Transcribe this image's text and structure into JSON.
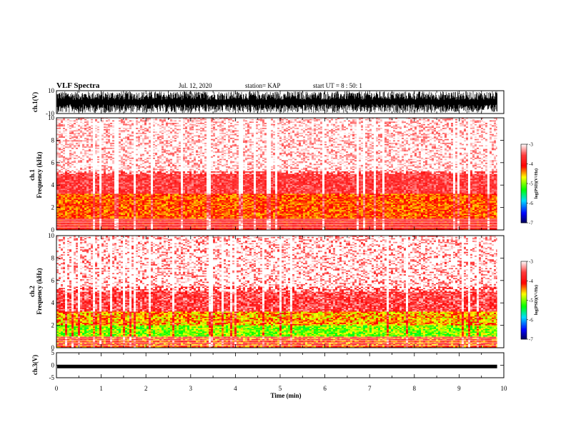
{
  "header": {
    "title": "VLF Spectra",
    "date": "Jul. 12, 2020",
    "station": "station= KAP",
    "start": "start UT =  8 : 50: 1"
  },
  "colors": {
    "background": "#ffffff",
    "axes": "#000000",
    "colormap": [
      "#ffffff",
      "#ff3030",
      "#ff0000",
      "#ffff00",
      "#00ff00",
      "#00ffff",
      "#0000ff",
      "#000080"
    ]
  },
  "chart_data": [
    {
      "type": "line",
      "panel": "ch1-waveform",
      "ylabel": "ch.1(V)",
      "ylim": [
        -10,
        10
      ],
      "yticks": [
        "10",
        "-10"
      ],
      "description_values": {
        "amplitude_range": [
          -10,
          10
        ]
      }
    },
    {
      "type": "heatmap",
      "panel": "ch1-spectrogram",
      "ylabel": "ch.1\nFrequency (kHz)",
      "ylabel_line1": "ch.1",
      "ylabel_line2": "Frequency (kHz)",
      "ylim": [
        0,
        10
      ],
      "yticks": [
        "0",
        "2",
        "4",
        "6",
        "8",
        "10"
      ],
      "colorbar": {
        "label": "log(PSD)(V²/Hz)",
        "ticks": [
          "-3",
          "-4",
          "-5",
          "-6",
          "-7"
        ],
        "range": [
          -7,
          -3
        ]
      },
      "bands_khz": [
        {
          "from": 0,
          "to": 1.0,
          "level": -4.0
        },
        {
          "from": 1.0,
          "to": 3.2,
          "level": -4.3
        },
        {
          "from": 3.2,
          "to": 5.2,
          "level": -3.6
        },
        {
          "from": 5.2,
          "to": 10,
          "level": -3.2
        }
      ]
    },
    {
      "type": "heatmap",
      "panel": "ch2-spectrogram",
      "ylabel_line1": "ch.2",
      "ylabel_line2": "Frequency (kHz)",
      "ylim": [
        0,
        10
      ],
      "yticks": [
        "0",
        "2",
        "4",
        "6",
        "8",
        "10"
      ],
      "colorbar": {
        "label": "log(PSD)(V²/Hz)",
        "ticks": [
          "-3",
          "-4",
          "-5",
          "-6",
          "-7"
        ],
        "range": [
          -7,
          -3
        ]
      },
      "bands_khz": [
        {
          "from": 0,
          "to": 1.0,
          "level": -4.2
        },
        {
          "from": 1.0,
          "to": 2.0,
          "level": -5.0
        },
        {
          "from": 2.0,
          "to": 3.2,
          "level": -4.5
        },
        {
          "from": 3.2,
          "to": 5.5,
          "level": -3.6
        },
        {
          "from": 5.5,
          "to": 10,
          "level": -3.2
        }
      ]
    },
    {
      "type": "line",
      "panel": "ch3-waveform",
      "ylabel": "ch.3(V)",
      "ylim": [
        -5,
        5
      ],
      "yticks": [
        "5",
        "0",
        "-5"
      ],
      "level_V": -0.5
    }
  ],
  "xaxis": {
    "label": "Time (min)",
    "ticks": [
      "0",
      "1",
      "2",
      "3",
      "4",
      "5",
      "6",
      "7",
      "8",
      "9",
      "10"
    ],
    "range": [
      0,
      10
    ],
    "data_end_min": 9.85
  }
}
